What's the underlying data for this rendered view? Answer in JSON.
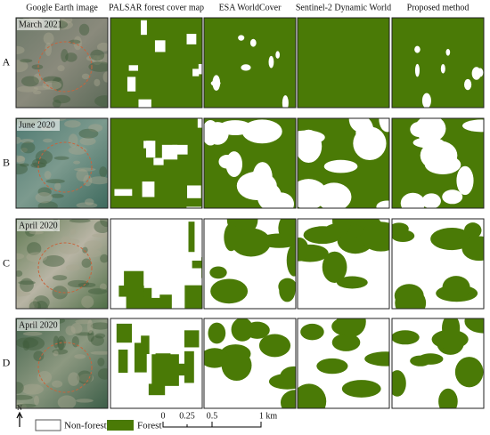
{
  "header": {
    "columns": [
      "Google Earth image",
      "PALSAR forest cover map",
      "ESA WorldCover",
      "Sentinel-2 Dynamic World",
      "Proposed method"
    ]
  },
  "rows": [
    {
      "label": "A",
      "date": "March 2021"
    },
    {
      "label": "B",
      "date": "June 2020"
    },
    {
      "label": "C",
      "date": "April 2020"
    },
    {
      "label": "D",
      "date": "April 2020"
    }
  ],
  "legend": {
    "north": "N",
    "items": [
      "Non-forest",
      "Forest"
    ]
  },
  "scale_bar": {
    "ticks": [
      "0",
      "0.25",
      "0.5",
      "1 km"
    ]
  }
}
